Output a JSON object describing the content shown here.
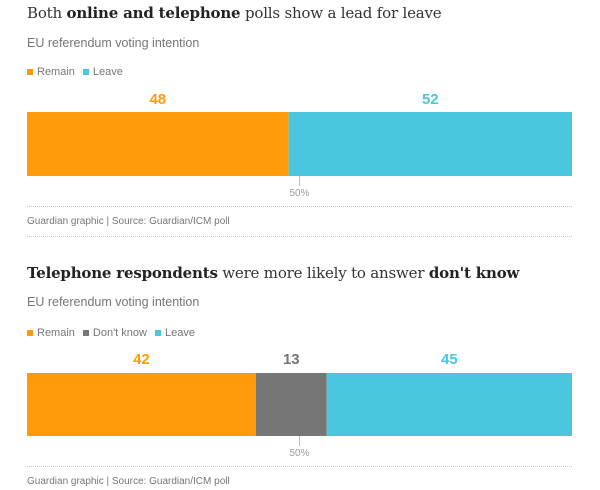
{
  "colors": {
    "remain": "#ff9b0b",
    "dont_know": "#767676",
    "leave": "#4bc6df",
    "midline": "#bbbbbb",
    "midlabel": "#999999"
  },
  "panels": [
    {
      "title_pre": "Both ",
      "title_bold": "online and telephone",
      "title_post": " polls show a lead for leave",
      "title_bold2": "",
      "subtitle": "EU referendum voting intention",
      "legend": [
        "Remain",
        "Leave"
      ],
      "midpoint_label": "50%",
      "source": "Guardian graphic | Source: Guardian/ICM poll"
    },
    {
      "title_pre": "",
      "title_bold": "Telephone respondents",
      "title_post": " were more likely to answer ",
      "title_bold2": "don't know",
      "subtitle": "EU referendum voting intention",
      "legend": [
        "Remain",
        "Don't know",
        "Leave"
      ],
      "midpoint_label": "50%",
      "source": "Guardian graphic | Source: Guardian/ICM poll"
    }
  ],
  "chart_data": [
    {
      "type": "bar",
      "stacked": true,
      "orientation": "horizontal",
      "series": [
        {
          "name": "Remain",
          "value": 48,
          "color": "#ff9b0b"
        },
        {
          "name": "Leave",
          "value": 52,
          "color": "#4bc6df"
        }
      ],
      "midpoint": 50,
      "title": "Both online and telephone polls show a lead for leave",
      "subtitle": "EU referendum voting intention"
    },
    {
      "type": "bar",
      "stacked": true,
      "orientation": "horizontal",
      "series": [
        {
          "name": "Remain",
          "value": 42,
          "color": "#ff9b0b"
        },
        {
          "name": "Don't know",
          "value": 13,
          "color": "#767676"
        },
        {
          "name": "Leave",
          "value": 45,
          "color": "#4bc6df"
        }
      ],
      "midpoint": 50,
      "title": "Telephone respondents were more likely to answer don't know",
      "subtitle": "EU referendum voting intention"
    }
  ]
}
